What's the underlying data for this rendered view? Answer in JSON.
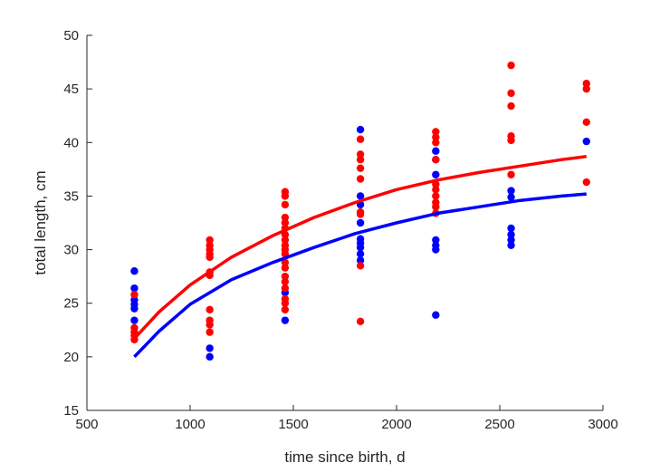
{
  "chart_data": {
    "type": "scatter",
    "title": "",
    "xlabel": "time since birth, d",
    "ylabel": "total length, cm",
    "xlim": [
      500,
      3000
    ],
    "ylim": [
      15,
      50
    ],
    "xticks": [
      500,
      1000,
      1500,
      2000,
      2500,
      3000
    ],
    "yticks": [
      15,
      20,
      25,
      30,
      35,
      40,
      45,
      50
    ],
    "grid": false,
    "legend": "none",
    "series": [
      {
        "color": "#0000ff",
        "points": [
          [
            730,
            28.0
          ],
          [
            730,
            26.4
          ],
          [
            730,
            25.3
          ],
          [
            730,
            24.9
          ],
          [
            730,
            24.5
          ],
          [
            730,
            23.4
          ],
          [
            1095,
            20.8
          ],
          [
            1095,
            20.0
          ],
          [
            1460,
            26.0
          ],
          [
            1460,
            23.4
          ],
          [
            1825,
            41.2
          ],
          [
            1825,
            35.0
          ],
          [
            1825,
            34.2
          ],
          [
            1825,
            32.5
          ],
          [
            1825,
            31.0
          ],
          [
            1825,
            30.6
          ],
          [
            1825,
            30.2
          ],
          [
            1825,
            29.6
          ],
          [
            1825,
            29.0
          ],
          [
            2190,
            39.2
          ],
          [
            2190,
            38.4
          ],
          [
            2190,
            37.0
          ],
          [
            2190,
            30.9
          ],
          [
            2190,
            30.4
          ],
          [
            2190,
            30.0
          ],
          [
            2190,
            23.9
          ],
          [
            2555,
            35.5
          ],
          [
            2555,
            34.9
          ],
          [
            2555,
            32.0
          ],
          [
            2555,
            31.4
          ],
          [
            2555,
            30.9
          ],
          [
            2555,
            30.4
          ],
          [
            2920,
            40.1
          ]
        ],
        "fit": [
          [
            730,
            20.0
          ],
          [
            850,
            22.4
          ],
          [
            1000,
            24.9
          ],
          [
            1200,
            27.2
          ],
          [
            1400,
            28.8
          ],
          [
            1600,
            30.2
          ],
          [
            1800,
            31.5
          ],
          [
            2000,
            32.5
          ],
          [
            2200,
            33.4
          ],
          [
            2400,
            34.0
          ],
          [
            2600,
            34.6
          ],
          [
            2800,
            35.0
          ],
          [
            2920,
            35.2
          ]
        ]
      },
      {
        "color": "#ff0000",
        "points": [
          [
            730,
            25.8
          ],
          [
            730,
            22.7
          ],
          [
            730,
            22.3
          ],
          [
            730,
            22.0
          ],
          [
            730,
            21.6
          ],
          [
            1095,
            30.9
          ],
          [
            1095,
            30.4
          ],
          [
            1095,
            30.0
          ],
          [
            1095,
            29.6
          ],
          [
            1095,
            29.3
          ],
          [
            1095,
            27.9
          ],
          [
            1095,
            27.6
          ],
          [
            1095,
            24.4
          ],
          [
            1095,
            23.4
          ],
          [
            1095,
            23.0
          ],
          [
            1095,
            22.3
          ],
          [
            1460,
            35.4
          ],
          [
            1460,
            35.0
          ],
          [
            1460,
            34.2
          ],
          [
            1460,
            33.0
          ],
          [
            1460,
            32.5
          ],
          [
            1460,
            32.0
          ],
          [
            1460,
            31.4
          ],
          [
            1460,
            30.9
          ],
          [
            1460,
            30.4
          ],
          [
            1460,
            30.0
          ],
          [
            1460,
            29.6
          ],
          [
            1460,
            28.8
          ],
          [
            1460,
            28.3
          ],
          [
            1460,
            27.5
          ],
          [
            1460,
            27.0
          ],
          [
            1460,
            26.4
          ],
          [
            1460,
            25.4
          ],
          [
            1460,
            25.0
          ],
          [
            1460,
            24.4
          ],
          [
            1825,
            40.3
          ],
          [
            1825,
            38.9
          ],
          [
            1825,
            38.4
          ],
          [
            1825,
            37.6
          ],
          [
            1825,
            36.6
          ],
          [
            1825,
            33.5
          ],
          [
            1825,
            33.3
          ],
          [
            1825,
            28.5
          ],
          [
            1825,
            23.3
          ],
          [
            2190,
            41.0
          ],
          [
            2190,
            40.5
          ],
          [
            2190,
            40.0
          ],
          [
            2190,
            38.4
          ],
          [
            2190,
            36.1
          ],
          [
            2190,
            35.6
          ],
          [
            2190,
            35.0
          ],
          [
            2190,
            34.4
          ],
          [
            2190,
            34.0
          ],
          [
            2190,
            33.4
          ],
          [
            2555,
            47.2
          ],
          [
            2555,
            44.6
          ],
          [
            2555,
            43.4
          ],
          [
            2555,
            40.6
          ],
          [
            2555,
            40.2
          ],
          [
            2555,
            37.0
          ],
          [
            2920,
            45.5
          ],
          [
            2920,
            45.0
          ],
          [
            2920,
            41.9
          ],
          [
            2920,
            36.3
          ]
        ],
        "fit": [
          [
            730,
            21.7
          ],
          [
            850,
            24.2
          ],
          [
            1000,
            26.7
          ],
          [
            1200,
            29.3
          ],
          [
            1400,
            31.3
          ],
          [
            1600,
            33.0
          ],
          [
            1800,
            34.4
          ],
          [
            2000,
            35.6
          ],
          [
            2200,
            36.5
          ],
          [
            2400,
            37.2
          ],
          [
            2600,
            37.8
          ],
          [
            2800,
            38.4
          ],
          [
            2920,
            38.7
          ]
        ]
      }
    ]
  }
}
